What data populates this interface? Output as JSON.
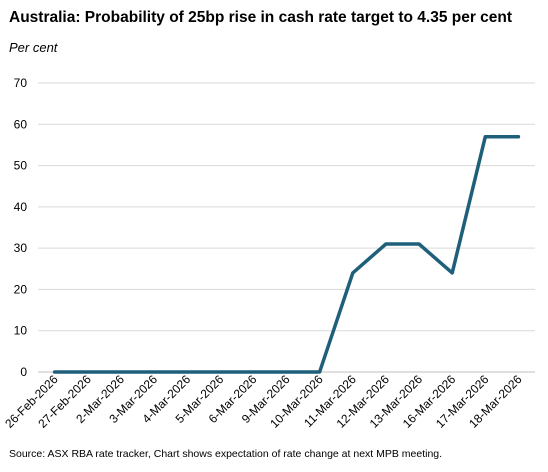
{
  "chart_data": {
    "type": "line",
    "title": "Australia: Probability of 25bp rise in cash rate target to 4.35 per cent",
    "subtitle": "Per cent",
    "source": "Source: ASX RBA rate tracker, Chart shows expectation of rate change at next MPB meeting.",
    "xlabel": "",
    "ylabel": "",
    "categories": [
      "26-Feb-2026",
      "27-Feb-2026",
      "2-Mar-2026",
      "3-Mar-2026",
      "4-Mar-2026",
      "5-Mar-2026",
      "6-Mar-2026",
      "9-Mar-2026",
      "10-Mar-2026",
      "11-Mar-2026",
      "12-Mar-2026",
      "13-Mar-2026",
      "16-Mar-2026",
      "17-Mar-2026",
      "18-Mar-2026"
    ],
    "series": [
      {
        "values": [
          0,
          0,
          0,
          0,
          0,
          0,
          0,
          0,
          0,
          24,
          31,
          31,
          24,
          57,
          57
        ],
        "color": "#1f5f7a"
      }
    ],
    "ylim": [
      0,
      70
    ],
    "yticks": [
      0,
      10,
      20,
      30,
      40,
      50,
      60,
      70
    ],
    "grid": true,
    "legend": "none"
  }
}
